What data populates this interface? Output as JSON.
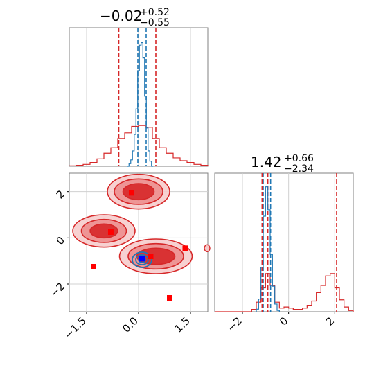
{
  "chart_data": [
    {
      "type": "histogram",
      "panel": "marginal-x",
      "title": {
        "main": "−0.02",
        "sup": "+0.52",
        "sub": "−0.55"
      },
      "xlim": [
        -2.0,
        2.0
      ],
      "grid": true,
      "series": [
        {
          "color": "#d62728",
          "style": "step",
          "x": [
            -1.9,
            -1.7,
            -1.5,
            -1.3,
            -1.1,
            -0.9,
            -0.7,
            -0.5,
            -0.3,
            -0.1,
            0.1,
            0.3,
            0.5,
            0.7,
            0.9,
            1.1,
            1.3,
            1.5,
            1.7,
            1.9
          ],
          "y": [
            0.005,
            0.01,
            0.02,
            0.04,
            0.08,
            0.14,
            0.2,
            0.3,
            0.36,
            0.43,
            0.44,
            0.42,
            0.3,
            0.2,
            0.14,
            0.09,
            0.06,
            0.04,
            0.02,
            0.01
          ],
          "quantile_lines": [
            -0.57,
            0.5
          ]
        },
        {
          "color": "#1f77b4",
          "style": "step",
          "x": [
            -0.3,
            -0.25,
            -0.2,
            -0.15,
            -0.1,
            -0.05,
            0.0,
            0.05,
            0.1,
            0.15,
            0.2,
            0.25,
            0.3,
            0.35,
            0.4
          ],
          "y": [
            0.0,
            0.02,
            0.05,
            0.12,
            0.25,
            0.45,
            0.75,
            0.95,
            0.97,
            0.85,
            0.55,
            0.3,
            0.12,
            0.04,
            0.0
          ],
          "quantile_lines": [
            -0.02,
            0.22
          ]
        }
      ]
    },
    {
      "type": "contour",
      "panel": "joint",
      "xlim": [
        -2.0,
        2.0
      ],
      "ylim": [
        -3.2,
        2.8
      ],
      "xticks": [
        "−1.5",
        "0.0",
        "1.5"
      ],
      "yticks": [
        "−2",
        "0",
        "2"
      ],
      "grid": true,
      "red_modes": [
        {
          "x": 0.0,
          "y": 2.0
        },
        {
          "x": -1.0,
          "y": 0.3
        },
        {
          "x": 0.5,
          "y": -0.8
        }
      ],
      "blue_mode": {
        "x": 0.1,
        "y": -0.95
      },
      "red_points": [
        {
          "x": -0.2,
          "y": 1.95
        },
        {
          "x": -0.8,
          "y": 0.25
        },
        {
          "x": 0.35,
          "y": -0.8
        },
        {
          "x": 1.35,
          "y": -0.45
        },
        {
          "x": -1.3,
          "y": -1.25
        },
        {
          "x": 0.9,
          "y": -2.6
        }
      ],
      "blue_points": [
        {
          "x": 0.1,
          "y": -0.9
        }
      ]
    },
    {
      "type": "histogram",
      "panel": "marginal-y",
      "title": {
        "main": "1.42",
        "sup": "+0.66",
        "sub": "−2.34"
      },
      "xlim": [
        -3.2,
        2.8
      ],
      "xticks": [
        "−2",
        "0",
        "2"
      ],
      "grid": true,
      "series": [
        {
          "color": "#d62728",
          "style": "step",
          "x": [
            -3.1,
            -2.9,
            -2.7,
            -2.5,
            -2.3,
            -2.1,
            -1.9,
            -1.7,
            -1.5,
            -1.3,
            -1.1,
            -0.9,
            -0.7,
            -0.5,
            -0.3,
            -0.1,
            0.1,
            0.3,
            0.5,
            0.7,
            0.9,
            1.1,
            1.3,
            1.5,
            1.7,
            1.9,
            2.1,
            2.3,
            2.5,
            2.7
          ],
          "y": [
            0.0,
            0.0,
            0.0,
            0.0,
            0.0,
            0.0,
            0.0,
            0.0,
            0.02,
            0.08,
            0.2,
            0.32,
            0.22,
            0.08,
            0.03,
            0.04,
            0.03,
            0.02,
            0.02,
            0.03,
            0.05,
            0.09,
            0.16,
            0.22,
            0.3,
            0.32,
            0.2,
            0.1,
            0.04,
            0.01
          ],
          "quantile_lines": [
            -1.15,
            -0.9,
            2.08
          ]
        },
        {
          "color": "#1f77b4",
          "style": "step",
          "x": [
            -1.35,
            -1.25,
            -1.15,
            -1.05,
            -0.95,
            -0.85,
            -0.75,
            -0.65,
            -0.55,
            -0.45
          ],
          "y": [
            0.02,
            0.1,
            0.35,
            0.75,
            0.98,
            0.8,
            0.45,
            0.2,
            0.06,
            0.01
          ],
          "quantile_lines": [
            -1.1,
            -0.78
          ]
        }
      ]
    }
  ]
}
